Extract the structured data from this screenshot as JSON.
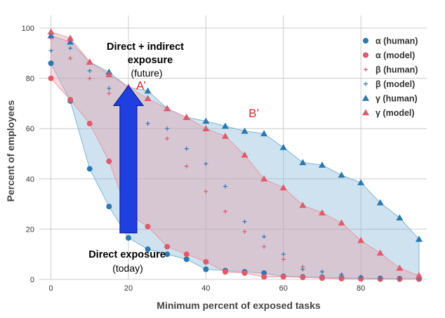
{
  "chart_data": {
    "type": "scatter",
    "title": "",
    "xlabel": "Minimum percent of exposed tasks",
    "ylabel": "Percent of employees",
    "xlim": [
      -3,
      97
    ],
    "ylim": [
      0,
      100
    ],
    "xticks": [
      0,
      20,
      40,
      60,
      80
    ],
    "yticks": [
      0,
      20,
      40,
      60,
      80,
      100
    ],
    "grid": true,
    "legend_position": "top-right",
    "x": [
      0,
      5,
      10,
      15,
      20,
      25,
      30,
      35,
      40,
      45,
      50,
      55,
      60,
      65,
      70,
      75,
      80,
      85,
      90,
      95
    ],
    "series": [
      {
        "name": "α (human)",
        "marker": "circle",
        "color": "#2a78b0",
        "values": [
          86,
          71,
          44,
          29,
          16.5,
          12,
          10,
          8,
          4,
          3.5,
          3,
          2.5,
          1.2,
          1,
          0.8,
          0.6,
          0.5,
          0.4,
          0.3,
          0.2
        ]
      },
      {
        "name": "α (model)",
        "marker": "circle",
        "color": "#e05a6a",
        "values": [
          80,
          71.5,
          62,
          47,
          26,
          21,
          13,
          10,
          7,
          3,
          2.5,
          1,
          1,
          0.8,
          0.5,
          0.3,
          0.2,
          0.1,
          0.1,
          0.1
        ]
      },
      {
        "name": "β (human)",
        "marker": "plus",
        "color": "#e05a6a",
        "values": [
          96,
          88,
          80,
          74,
          64,
          62,
          56,
          45,
          35,
          27,
          19,
          13,
          8,
          5,
          3,
          2,
          1,
          0.5,
          0.3,
          0.2
        ]
      },
      {
        "name": "β (model)",
        "marker": "plus",
        "color": "#2a78b0",
        "values": [
          91,
          92,
          83,
          76,
          70,
          62,
          60,
          52,
          46,
          37,
          23,
          17,
          10,
          4,
          3,
          2,
          1,
          0.5,
          0.3,
          0.2
        ]
      },
      {
        "name": "γ (human)",
        "marker": "triangle",
        "color": "#2a78b0",
        "values": [
          97,
          94.5,
          86.5,
          82.5,
          76.5,
          75,
          68,
          64.5,
          63,
          61,
          59,
          58,
          52.5,
          46.5,
          45.5,
          41.5,
          38.5,
          30.5,
          24.5,
          16
        ]
      },
      {
        "name": "γ (model)",
        "marker": "triangle",
        "color": "#e05a6a",
        "values": [
          98.5,
          96,
          86.5,
          81.5,
          76.5,
          72,
          68,
          64.5,
          60,
          57,
          49.5,
          40,
          36.5,
          29.5,
          26.5,
          22.5,
          15.5,
          10.5,
          4.5,
          1.5
        ]
      }
    ],
    "bands": [
      {
        "lower": "α (human)",
        "upper": "γ (human)",
        "color": "#7fb5d5"
      },
      {
        "lower": "α (model)",
        "upper": "γ (model)",
        "color": "#e89aa5"
      }
    ],
    "annotations": {
      "arrow": {
        "x": 20,
        "y_from": 18.5,
        "y_to": 77,
        "color": "#1f3fe0"
      },
      "label_a_prime": {
        "text": "A’",
        "x": 22,
        "y": 75.5,
        "color": "#e0262e"
      },
      "label_b_prime": {
        "text": "B’",
        "x": 51,
        "y": 64.5,
        "color": "#e0262e"
      },
      "future_title_line1": "Direct + indirect",
      "future_title_line2": "exposure",
      "future_subtitle": "(future)",
      "today_title": "Direct exposure",
      "today_subtitle": "(today)"
    }
  }
}
